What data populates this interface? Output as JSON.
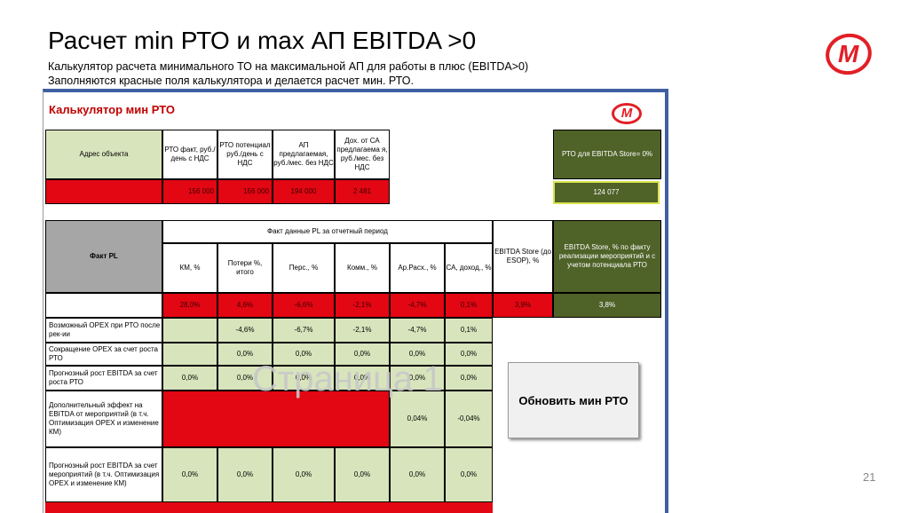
{
  "slide": {
    "title": "Расчет min РТО и max АП EBITDA >0",
    "subtitle_1": "Калькулятор расчета минимального ТО на максимальной АП для работы в плюс (EBITDA>0)",
    "subtitle_2": "Заполняются красные поля калькулятора и делается расчет мин. РТО.",
    "page_number": "21",
    "logo_letter": "М"
  },
  "calc": {
    "title": "Калькулятор мин РТО",
    "logo_letter": "М",
    "address_label": "Адрес объекта",
    "rto_fact": "РТО факт, руб./день с НДС",
    "rto_potential": "РТО потенциал руб./день с НДС",
    "ap": "АП предлагаемая, руб./мес. без НДС",
    "income_ca": "Дох. от СА предлагаема я, руб./мес. без НДС",
    "rto_ebitda_label": "РТО для EBITDA Store= 0%",
    "rto_ebitda_value": "124 077",
    "inputs": {
      "rto_fact": "156 000",
      "rto_potential": "156 000",
      "ap": "194 000",
      "income_ca": "2 481"
    }
  },
  "pl": {
    "fact_pl_label": "Факт PL",
    "section_label": "Факт данные PL за отчетный период",
    "ebitda_fact_label": "EBITDA Store, % по факту реализации мероприятий и с учетом потенциала РТО",
    "columns": [
      "КМ, %",
      "Потери %, итого",
      "Перс., %",
      "Комм., %",
      "Ар.Расх., %",
      "СА, доход., %",
      "EBITDA Store (до ESOP), %"
    ],
    "fact_values": [
      "28,0%",
      "4,6%",
      "-6,6%",
      "-2,1%",
      "-4,7%",
      "0,1%",
      "3,9%"
    ],
    "ebitda_fact_value": "3,8%"
  },
  "rows": [
    {
      "label": "Возможный OPEX при РТО после рек-ии",
      "values": [
        "",
        "-4,6%",
        "-6,7%",
        "-2,1%",
        "-4,7%",
        "0,1%"
      ]
    },
    {
      "label": "Сокращение OPEX за счет роста РТО",
      "values": [
        "",
        "0,0%",
        "0,0%",
        "0,0%",
        "0,0%",
        "0,0%"
      ]
    },
    {
      "label": "Прогнозный рост EBITDA за счет роста РТО",
      "values": [
        "0,0%",
        "0,0%",
        "0,0%",
        "0,0%",
        "0,0%",
        "0,0%"
      ]
    },
    {
      "label": "Дополнительный эффект на EBITDA от мероприятий (в т.ч. Оптимизация OPEX и изменение КМ)",
      "values": [
        "0,04%",
        "-0,04%"
      ]
    },
    {
      "label": "Прогнозный рост EBITDA за счет мероприятий (в т.ч. Оптимизация OPEX и изменение КМ)",
      "values": [
        "0,0%",
        "0,0%",
        "0,0%",
        "0,0%",
        "0,0%",
        "0,0%"
      ]
    }
  ],
  "watermark": "Страница 1",
  "update_button": "Обновить мин РТО",
  "colors": {
    "red": "#e30613",
    "green": "#d8e4bc",
    "olive": "#4f6228",
    "gray": "#a6a6a6",
    "frame": "#3f5fa0"
  }
}
